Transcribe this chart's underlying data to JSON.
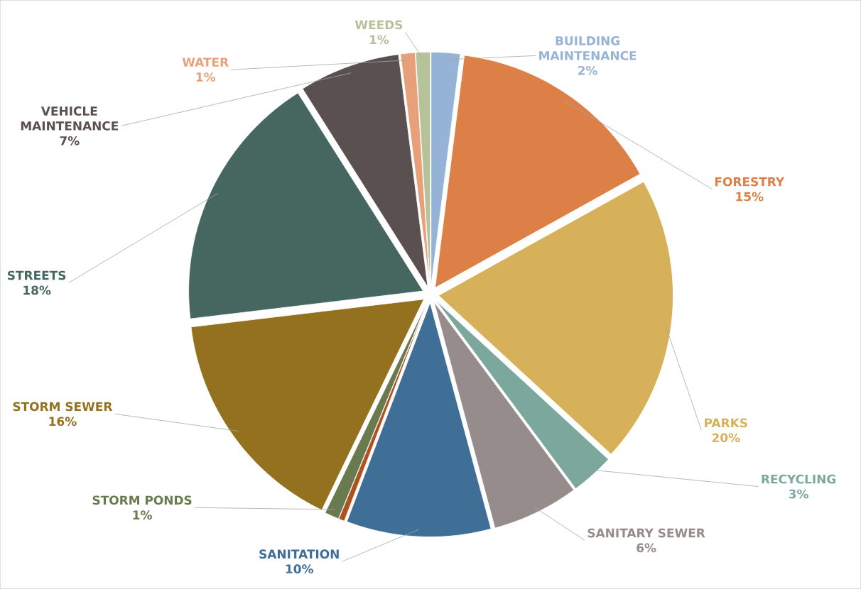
{
  "chart_data": {
    "type": "pie",
    "categories": [
      "BUILDING MAINTENANCE",
      "FORESTRY",
      "PARKS",
      "RECYCLING",
      "SANITARY SEWER",
      "SANITATION",
      null,
      "STORM PONDS",
      "STORM SEWER",
      "STREETS",
      "VEHICLE MAINTENANCE",
      "WATER",
      "WEEDS"
    ],
    "values": [
      2,
      15,
      20,
      3,
      6,
      10,
      0.4,
      1,
      16,
      18,
      7,
      1,
      1
    ],
    "value_labels": [
      "2%",
      "15%",
      "20%",
      "3%",
      "6%",
      "10%",
      null,
      "1%",
      "16%",
      "18%",
      "7%",
      "1%",
      "1%"
    ],
    "colors": [
      "#95b3d7",
      "#dd8047",
      "#d6b15a",
      "#7ba79d",
      "#968c8c",
      "#3f6f97",
      "#b0501f",
      "#687a4e",
      "#94711f",
      "#46675f",
      "#5b5050",
      "#e8a07a",
      "#b5c29a"
    ]
  }
}
